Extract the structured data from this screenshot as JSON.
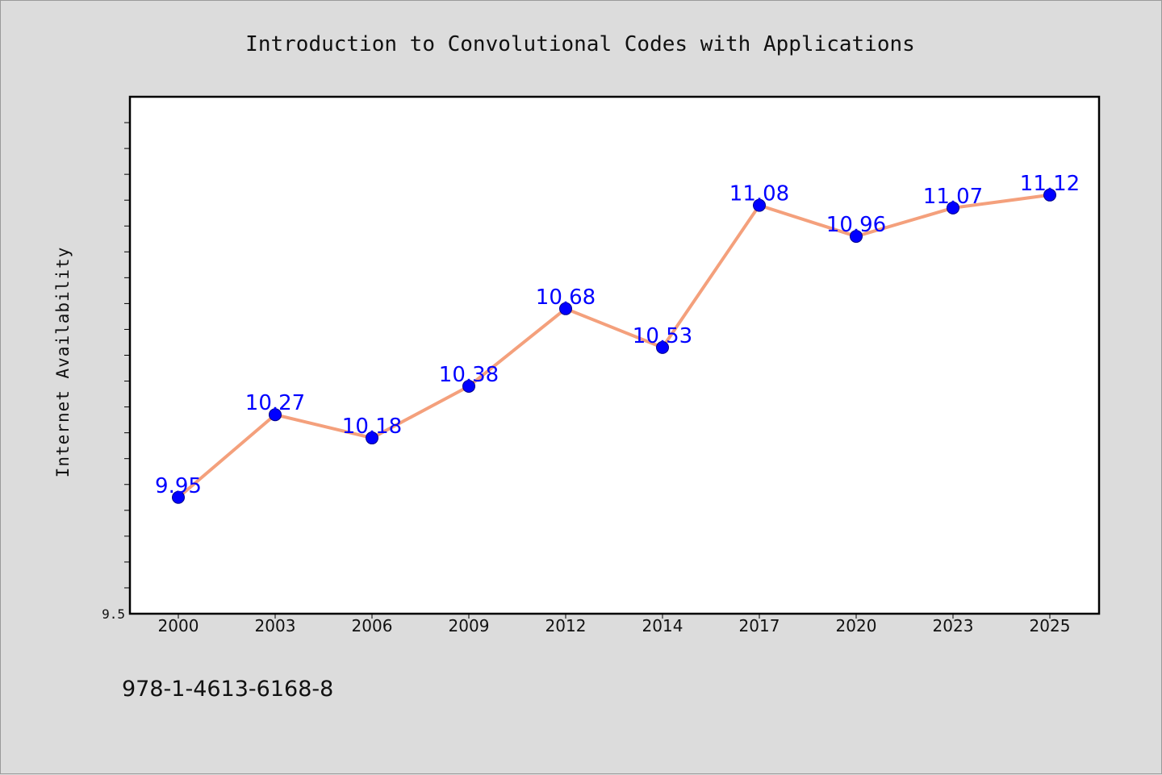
{
  "chart_data": {
    "type": "line",
    "title": "Introduction to Convolutional Codes with Applications",
    "xlabel": "",
    "ylabel": "Internet Availability",
    "categories": [
      "2000",
      "2003",
      "2006",
      "2009",
      "2012",
      "2014",
      "2017",
      "2020",
      "2023",
      "2025"
    ],
    "series": [
      {
        "values": [
          9.95,
          10.27,
          10.18,
          10.38,
          10.68,
          10.53,
          11.08,
          10.96,
          11.07,
          11.12
        ]
      }
    ],
    "y_tick_labels": [
      "9.5"
    ],
    "ylim": [
      9.5,
      11.5
    ],
    "y_minor_tick_step": 0.1,
    "grid": false,
    "line_color": "#f4a07c",
    "marker_color": "#0000ff",
    "label_color": "#0000ff",
    "plot_background": "#ffffff",
    "page_background": "#dcdcdc"
  },
  "footer": {
    "text": "978-1-4613-6168-8"
  }
}
